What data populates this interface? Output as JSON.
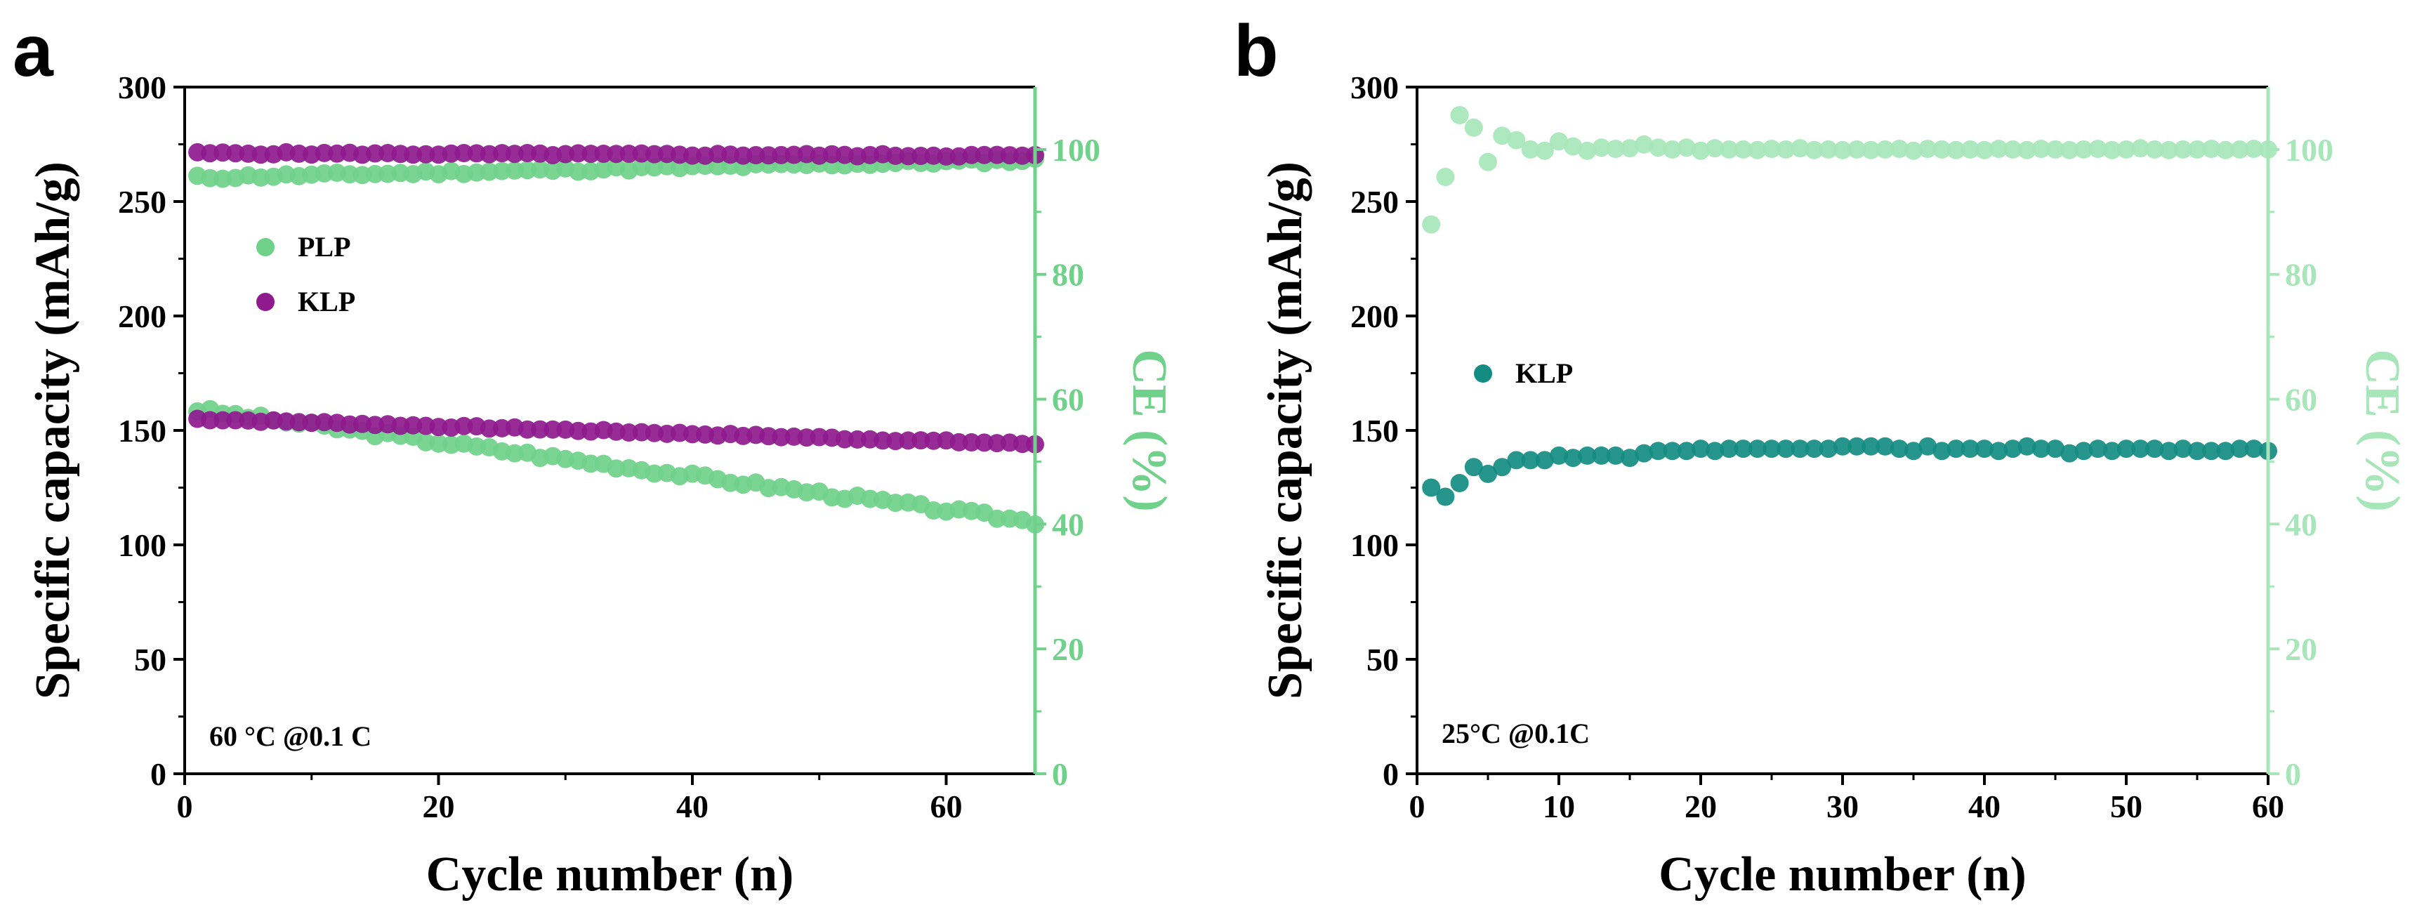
{
  "chart_data": [
    {
      "panel": "a",
      "type": "scatter",
      "xlabel": "Cycle number (n)",
      "ylabel": "Specific capacity (mAh/g)",
      "y2label": "CE (%)",
      "xlim": [
        0,
        67
      ],
      "ylim": [
        0,
        300
      ],
      "y2lim": [
        0,
        110
      ],
      "xticks": [
        0,
        20,
        40,
        60
      ],
      "xtick_labels": [
        "0",
        "20",
        "40",
        "60"
      ],
      "yticks": [
        0,
        50,
        100,
        150,
        200,
        250,
        300
      ],
      "ytick_labels": [
        "0",
        "50",
        "100",
        "150",
        "200",
        "250",
        "300"
      ],
      "y2ticks": [
        0,
        20,
        40,
        60,
        80,
        100
      ],
      "y2tick_labels": [
        "0",
        "20",
        "40",
        "60",
        "80",
        "100"
      ],
      "annotation": "60 °C @0.1 C",
      "legend": [
        {
          "label": "PLP",
          "color": "#6fd18a"
        },
        {
          "label": "KLP",
          "color": "#8e1a8e"
        }
      ],
      "series": [
        {
          "name": "PLP capacity",
          "axis": "left",
          "color": "#6fd18a",
          "x_start": 1,
          "x_end": 67,
          "y_start": 159,
          "y_end": 110,
          "noise": 1.2,
          "seed": 3
        },
        {
          "name": "KLP capacity",
          "axis": "left",
          "color": "#8e1a8e",
          "x_start": 1,
          "x_end": 67,
          "y_start": 155,
          "y_end": 144,
          "noise": 0.5,
          "seed": 7
        },
        {
          "name": "PLP CE",
          "axis": "right",
          "color": "#6fd18a",
          "x_start": 1,
          "x_end": 67,
          "y_start": 95.5,
          "y_end": 98.3,
          "noise": 0.35,
          "seed": 11
        },
        {
          "name": "KLP CE",
          "axis": "right",
          "color": "#8e1a8e",
          "x_start": 1,
          "x_end": 67,
          "y_start": 99.4,
          "y_end": 99.0,
          "noise": 0.2,
          "seed": 5
        }
      ]
    },
    {
      "panel": "b",
      "type": "scatter",
      "xlabel": "Cycle number (n)",
      "ylabel": "Specific capacity (mAh/g)",
      "y2label": "CE (%)",
      "xlim": [
        0,
        60
      ],
      "ylim": [
        0,
        300
      ],
      "y2lim": [
        0,
        110
      ],
      "xticks": [
        0,
        10,
        20,
        30,
        40,
        50,
        60
      ],
      "xtick_labels": [
        "0",
        "10",
        "20",
        "30",
        "40",
        "50",
        "60"
      ],
      "yticks": [
        0,
        50,
        100,
        150,
        200,
        250,
        300
      ],
      "ytick_labels": [
        "0",
        "50",
        "100",
        "150",
        "200",
        "250",
        "300"
      ],
      "y2ticks": [
        0,
        20,
        40,
        60,
        80,
        100
      ],
      "y2tick_labels": [
        "0",
        "20",
        "40",
        "60",
        "80",
        "100"
      ],
      "annotation": "25°C @0.1C",
      "legend": [
        {
          "label": "KLP",
          "color": "#138c82"
        }
      ],
      "series": [
        {
          "name": "KLP capacity",
          "axis": "left",
          "color": "#138c82",
          "x": [
            1,
            2,
            3,
            4,
            5,
            6,
            7,
            8,
            9,
            10,
            11,
            12,
            13,
            14,
            15,
            16,
            17,
            18,
            19,
            20,
            21,
            22,
            23,
            24,
            25,
            26,
            27,
            28,
            29,
            30,
            31,
            32,
            33,
            34,
            35,
            36,
            37,
            38,
            39,
            40,
            41,
            42,
            43,
            44,
            45,
            46,
            47,
            48,
            49,
            50,
            51,
            52,
            53,
            54,
            55,
            56,
            57,
            58,
            59,
            60
          ],
          "y": [
            125,
            121,
            127,
            134,
            131,
            134,
            137,
            137,
            137,
            139,
            138,
            139,
            139,
            139,
            138,
            140,
            141,
            141,
            141,
            142,
            141,
            142,
            142,
            142,
            142,
            142,
            142,
            142,
            142,
            143,
            143,
            143,
            143,
            142,
            141,
            143,
            141,
            142,
            142,
            142,
            141,
            142,
            143,
            142,
            142,
            140,
            141,
            142,
            141,
            142,
            142,
            142,
            141,
            142,
            141,
            141,
            141,
            142,
            142,
            141
          ]
        },
        {
          "name": "KLP CE",
          "axis": "right",
          "color": "#a6e6b8",
          "x": [
            1,
            2,
            3,
            4,
            5,
            6,
            7,
            8,
            9,
            10,
            11,
            12,
            13,
            14,
            15,
            16,
            17,
            18,
            19,
            20,
            21,
            22,
            23,
            24,
            25,
            26,
            27,
            28,
            29,
            30,
            31,
            32,
            33,
            34,
            35,
            36,
            37,
            38,
            39,
            40,
            41,
            42,
            43,
            44,
            45,
            46,
            47,
            48,
            49,
            50,
            51,
            52,
            53,
            54,
            55,
            56,
            57,
            58,
            59,
            60
          ],
          "y": [
            88,
            95.6,
            105.5,
            103.5,
            98,
            102.2,
            101.5,
            100,
            99.8,
            101.3,
            100.5,
            99.8,
            100.3,
            100.1,
            100.2,
            100.8,
            100.3,
            100,
            100.3,
            99.8,
            100.2,
            100,
            100,
            99.9,
            100.1,
            100,
            100.2,
            99.9,
            100,
            99.9,
            100,
            99.9,
            100,
            100.1,
            99.8,
            100.1,
            100,
            99.9,
            100,
            99.9,
            100.1,
            100,
            99.9,
            100.1,
            100,
            99.9,
            100,
            100.1,
            99.9,
            100,
            100.2,
            100,
            99.9,
            100,
            100,
            100.1,
            99.9,
            100,
            100.1,
            100
          ]
        }
      ]
    }
  ]
}
